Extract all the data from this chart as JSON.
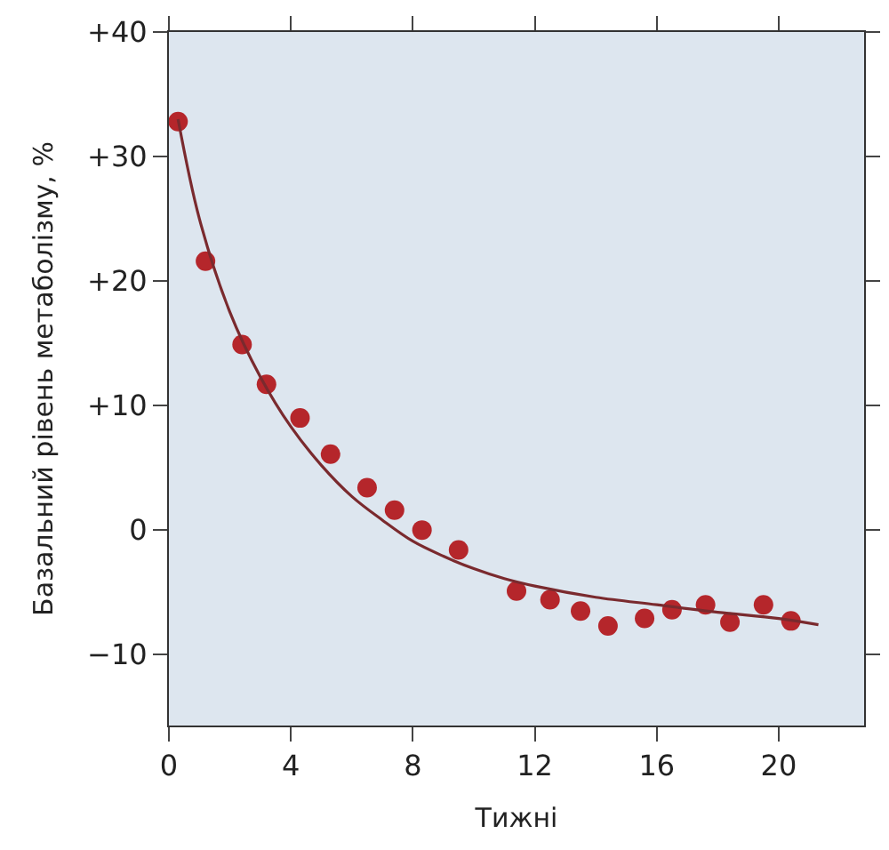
{
  "chart_data": {
    "type": "scatter",
    "xlabel": "Тижні",
    "ylabel": "Базальний рівень метаболізму, %",
    "xlim": [
      0,
      22.8
    ],
    "ylim": [
      -15.7,
      40
    ],
    "xticks": [
      0,
      4,
      8,
      12,
      16,
      20
    ],
    "yticks": [
      {
        "value": 40,
        "label": "+40"
      },
      {
        "value": 30,
        "label": "+30"
      },
      {
        "value": 20,
        "label": "+20"
      },
      {
        "value": 10,
        "label": "+10"
      },
      0,
      {
        "value": -10,
        "label": "−10"
      }
    ],
    "grid": false,
    "marker": "circle",
    "series": [
      {
        "color": "#b5262b",
        "x": [
          0.3,
          1.2,
          2.4,
          3.2,
          4.3,
          5.3,
          6.5,
          7.4,
          8.3,
          9.5,
          11.4,
          12.5,
          13.5,
          14.4,
          15.6,
          16.5,
          17.6,
          18.4,
          19.5,
          20.4
        ],
        "values": [
          32.8,
          21.6,
          14.9,
          11.7,
          9.0,
          6.1,
          3.4,
          1.6,
          0.0,
          -1.6,
          -4.9,
          -5.6,
          -6.5,
          -7.7,
          -7.1,
          -6.4,
          -6.0,
          -7.4,
          -6.0,
          -7.3
        ]
      },
      {
        "type": "line",
        "color": "#7a2a2e",
        "marker": "none",
        "line_style": "solid",
        "x": [
          0.3,
          1,
          2,
          3,
          4,
          5,
          6,
          7,
          8,
          9,
          10,
          11,
          12,
          14,
          16,
          18,
          20,
          21.3
        ],
        "values": [
          33,
          25,
          17.5,
          12.3,
          8.3,
          5.2,
          2.7,
          0.8,
          -0.9,
          -2.1,
          -3.1,
          -3.9,
          -4.5,
          -5.4,
          -6.0,
          -6.6,
          -7.1,
          -7.6
        ]
      }
    ]
  }
}
